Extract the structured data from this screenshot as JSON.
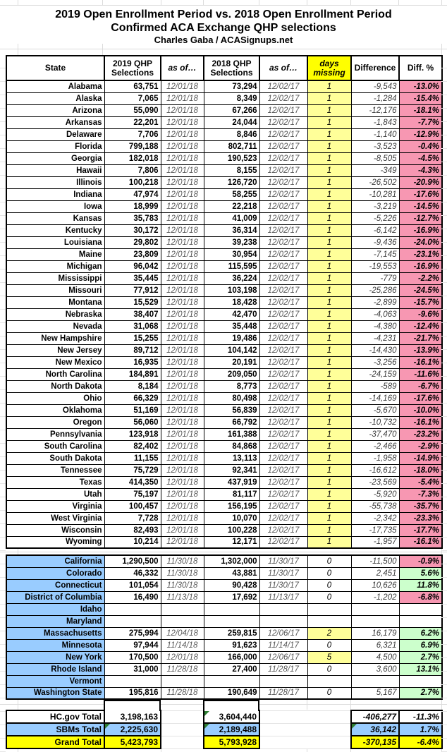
{
  "title": {
    "line1": "2019 Open Enrollment Period vs. 2018 Open Enrollment Period",
    "line2": "Confirmed ACA Exchange QHP selections",
    "line3": "Charles Gaba / ACASignups.net"
  },
  "columns": [
    {
      "label": "State",
      "class": ""
    },
    {
      "label": "2019 QHP\nSelections",
      "class": ""
    },
    {
      "label": "as of…",
      "class": "asof"
    },
    {
      "label": "2018 QHP\nSelections",
      "class": ""
    },
    {
      "label": "as of…",
      "class": "asof"
    },
    {
      "label": "days\nmissing",
      "class": "days"
    },
    {
      "label": "Difference",
      "class": ""
    },
    {
      "label": "Diff. %",
      "class": ""
    }
  ],
  "colors": {
    "header_days_yellow": "#ffff00",
    "days_cell_yellow": "#ffff99",
    "negative_pink": "#f797b2",
    "positive_green": "#ccffcc",
    "sbm_blue": "#99ccff",
    "grand_total_yellow": "#ffff00",
    "flag_green": "#2e7d32",
    "gridline_gray": "#dcdcdc"
  },
  "hcgov_rows": [
    {
      "state": "Alabama",
      "v2019": "63,751",
      "d2019": "12/01/18",
      "v2018": "73,294",
      "d2017": "12/02/17",
      "days": "1",
      "diff": "-9,543",
      "pct": "-13.0%"
    },
    {
      "state": "Alaska",
      "v2019": "7,065",
      "d2019": "12/01/18",
      "v2018": "8,349",
      "d2017": "12/02/17",
      "days": "1",
      "diff": "-1,284",
      "pct": "-15.4%"
    },
    {
      "state": "Arizona",
      "v2019": "55,090",
      "d2019": "12/01/18",
      "v2018": "67,266",
      "d2017": "12/02/17",
      "days": "1",
      "diff": "-12,176",
      "pct": "-18.1%"
    },
    {
      "state": "Arkansas",
      "v2019": "22,201",
      "d2019": "12/01/18",
      "v2018": "24,044",
      "d2017": "12/02/17",
      "days": "1",
      "diff": "-1,843",
      "pct": "-7.7%"
    },
    {
      "state": "Delaware",
      "v2019": "7,706",
      "d2019": "12/01/18",
      "v2018": "8,846",
      "d2017": "12/02/17",
      "days": "1",
      "diff": "-1,140",
      "pct": "-12.9%"
    },
    {
      "state": "Florida",
      "v2019": "799,188",
      "d2019": "12/01/18",
      "v2018": "802,711",
      "d2017": "12/02/17",
      "days": "1",
      "diff": "-3,523",
      "pct": "-0.4%"
    },
    {
      "state": "Georgia",
      "v2019": "182,018",
      "d2019": "12/01/18",
      "v2018": "190,523",
      "d2017": "12/02/17",
      "days": "1",
      "diff": "-8,505",
      "pct": "-4.5%"
    },
    {
      "state": "Hawaii",
      "v2019": "7,806",
      "d2019": "12/01/18",
      "v2018": "8,155",
      "d2017": "12/02/17",
      "days": "1",
      "diff": "-349",
      "pct": "-4.3%"
    },
    {
      "state": "Illinois",
      "v2019": "100,218",
      "d2019": "12/01/18",
      "v2018": "126,720",
      "d2017": "12/02/17",
      "days": "1",
      "diff": "-26,502",
      "pct": "-20.9%"
    },
    {
      "state": "Indiana",
      "v2019": "47,974",
      "d2019": "12/01/18",
      "v2018": "58,255",
      "d2017": "12/02/17",
      "days": "1",
      "diff": "-10,281",
      "pct": "-17.6%"
    },
    {
      "state": "Iowa",
      "v2019": "18,999",
      "d2019": "12/01/18",
      "v2018": "22,218",
      "d2017": "12/02/17",
      "days": "1",
      "diff": "-3,219",
      "pct": "-14.5%"
    },
    {
      "state": "Kansas",
      "v2019": "35,783",
      "d2019": "12/01/18",
      "v2018": "41,009",
      "d2017": "12/02/17",
      "days": "1",
      "diff": "-5,226",
      "pct": "-12.7%"
    },
    {
      "state": "Kentucky",
      "v2019": "30,172",
      "d2019": "12/01/18",
      "v2018": "36,314",
      "d2017": "12/02/17",
      "days": "1",
      "diff": "-6,142",
      "pct": "-16.9%"
    },
    {
      "state": "Louisiana",
      "v2019": "29,802",
      "d2019": "12/01/18",
      "v2018": "39,238",
      "d2017": "12/02/17",
      "days": "1",
      "diff": "-9,436",
      "pct": "-24.0%"
    },
    {
      "state": "Maine",
      "v2019": "23,809",
      "d2019": "12/01/18",
      "v2018": "30,954",
      "d2017": "12/02/17",
      "days": "1",
      "diff": "-7,145",
      "pct": "-23.1%"
    },
    {
      "state": "Michigan",
      "v2019": "96,042",
      "d2019": "12/01/18",
      "v2018": "115,595",
      "d2017": "12/02/17",
      "days": "1",
      "diff": "-19,553",
      "pct": "-16.9%"
    },
    {
      "state": "Mississippi",
      "v2019": "35,445",
      "d2019": "12/01/18",
      "v2018": "36,224",
      "d2017": "12/02/17",
      "days": "1",
      "diff": "-779",
      "pct": "-2.2%"
    },
    {
      "state": "Missouri",
      "v2019": "77,912",
      "d2019": "12/01/18",
      "v2018": "103,198",
      "d2017": "12/02/17",
      "days": "1",
      "diff": "-25,286",
      "pct": "-24.5%"
    },
    {
      "state": "Montana",
      "v2019": "15,529",
      "d2019": "12/01/18",
      "v2018": "18,428",
      "d2017": "12/02/17",
      "days": "1",
      "diff": "-2,899",
      "pct": "-15.7%"
    },
    {
      "state": "Nebraska",
      "v2019": "38,407",
      "d2019": "12/01/18",
      "v2018": "42,470",
      "d2017": "12/02/17",
      "days": "1",
      "diff": "-4,063",
      "pct": "-9.6%"
    },
    {
      "state": "Nevada",
      "v2019": "31,068",
      "d2019": "12/01/18",
      "v2018": "35,448",
      "d2017": "12/02/17",
      "days": "1",
      "diff": "-4,380",
      "pct": "-12.4%"
    },
    {
      "state": "New Hampshire",
      "v2019": "15,255",
      "d2019": "12/01/18",
      "v2018": "19,486",
      "d2017": "12/02/17",
      "days": "1",
      "diff": "-4,231",
      "pct": "-21.7%"
    },
    {
      "state": "New Jersey",
      "v2019": "89,712",
      "d2019": "12/01/18",
      "v2018": "104,142",
      "d2017": "12/02/17",
      "days": "1",
      "diff": "-14,430",
      "pct": "-13.9%"
    },
    {
      "state": "New Mexico",
      "v2019": "16,935",
      "d2019": "12/01/18",
      "v2018": "20,191",
      "d2017": "12/02/17",
      "days": "1",
      "diff": "-3,256",
      "pct": "-16.1%"
    },
    {
      "state": "North Carolina",
      "v2019": "184,891",
      "d2019": "12/01/18",
      "v2018": "209,050",
      "d2017": "12/02/17",
      "days": "1",
      "diff": "-24,159",
      "pct": "-11.6%"
    },
    {
      "state": "North Dakota",
      "v2019": "8,184",
      "d2019": "12/01/18",
      "v2018": "8,773",
      "d2017": "12/02/17",
      "days": "1",
      "diff": "-589",
      "pct": "-6.7%"
    },
    {
      "state": "Ohio",
      "v2019": "66,329",
      "d2019": "12/01/18",
      "v2018": "80,498",
      "d2017": "12/02/17",
      "days": "1",
      "diff": "-14,169",
      "pct": "-17.6%"
    },
    {
      "state": "Oklahoma",
      "v2019": "51,169",
      "d2019": "12/01/18",
      "v2018": "56,839",
      "d2017": "12/02/17",
      "days": "1",
      "diff": "-5,670",
      "pct": "-10.0%"
    },
    {
      "state": "Oregon",
      "v2019": "56,060",
      "d2019": "12/01/18",
      "v2018": "66,792",
      "d2017": "12/02/17",
      "days": "1",
      "diff": "-10,732",
      "pct": "-16.1%"
    },
    {
      "state": "Pennsylvania",
      "v2019": "123,918",
      "d2019": "12/01/18",
      "v2018": "161,388",
      "d2017": "12/02/17",
      "days": "1",
      "diff": "-37,470",
      "pct": "-23.2%"
    },
    {
      "state": "South Carolina",
      "v2019": "82,402",
      "d2019": "12/01/18",
      "v2018": "84,868",
      "d2017": "12/02/17",
      "days": "1",
      "diff": "-2,466",
      "pct": "-2.9%"
    },
    {
      "state": "South Dakota",
      "v2019": "11,155",
      "d2019": "12/01/18",
      "v2018": "13,113",
      "d2017": "12/02/17",
      "days": "1",
      "diff": "-1,958",
      "pct": "-14.9%"
    },
    {
      "state": "Tennessee",
      "v2019": "75,729",
      "d2019": "12/01/18",
      "v2018": "92,341",
      "d2017": "12/02/17",
      "days": "1",
      "diff": "-16,612",
      "pct": "-18.0%"
    },
    {
      "state": "Texas",
      "v2019": "414,350",
      "d2019": "12/01/18",
      "v2018": "437,919",
      "d2017": "12/02/17",
      "days": "1",
      "diff": "-23,569",
      "pct": "-5.4%"
    },
    {
      "state": "Utah",
      "v2019": "75,197",
      "d2019": "12/01/18",
      "v2018": "81,117",
      "d2017": "12/02/17",
      "days": "1",
      "diff": "-5,920",
      "pct": "-7.3%"
    },
    {
      "state": "Virginia",
      "v2019": "100,457",
      "d2019": "12/01/18",
      "v2018": "156,195",
      "d2017": "12/02/17",
      "days": "1",
      "diff": "-55,738",
      "pct": "-35.7%"
    },
    {
      "state": "West Virginia",
      "v2019": "7,728",
      "d2019": "12/01/18",
      "v2018": "10,070",
      "d2017": "12/02/17",
      "days": "1",
      "diff": "-2,342",
      "pct": "-23.3%"
    },
    {
      "state": "Wisconsin",
      "v2019": "82,493",
      "d2019": "12/01/18",
      "v2018": "100,228",
      "d2017": "12/02/17",
      "days": "1",
      "diff": "-17,735",
      "pct": "-17.7%"
    },
    {
      "state": "Wyoming",
      "v2019": "10,214",
      "d2019": "12/01/18",
      "v2018": "12,171",
      "d2017": "12/02/17",
      "days": "1",
      "diff": "-1,957",
      "pct": "-16.1%"
    }
  ],
  "sbm_rows": [
    {
      "state": "California",
      "v2019": "1,290,500",
      "d2019": "11/30/18",
      "v2018": "1,302,000",
      "d2017": "11/30/17",
      "days": "0",
      "diff": "-11,500",
      "pct": "-0.9%"
    },
    {
      "state": "Colorado",
      "v2019": "46,332",
      "d2019": "11/30/18",
      "v2018": "43,881",
      "d2017": "11/30/17",
      "days": "0",
      "diff": "2,451",
      "pct": "5.6%"
    },
    {
      "state": "Connecticut",
      "v2019": "101,054",
      "d2019": "11/30/18",
      "v2018": "90,428",
      "d2017": "11/30/17",
      "days": "0",
      "diff": "10,626",
      "pct": "11.8%"
    },
    {
      "state": "District of Columbia",
      "v2019": "16,490",
      "d2019": "11/13/18",
      "v2018": "17,692",
      "d2017": "11/13/17",
      "days": "0",
      "diff": "-1,202",
      "pct": "-6.8%"
    },
    {
      "state": "Idaho",
      "v2019": "",
      "d2019": "",
      "v2018": "",
      "d2017": "",
      "days": "",
      "diff": "",
      "pct": ""
    },
    {
      "state": "Maryland",
      "v2019": "",
      "d2019": "",
      "v2018": "",
      "d2017": "",
      "days": "",
      "diff": "",
      "pct": ""
    },
    {
      "state": "Massachusetts",
      "v2019": "275,994",
      "d2019": "12/04/18",
      "v2018": "259,815",
      "d2017": "12/06/17",
      "days": "2",
      "diff": "16,179",
      "pct": "6.2%"
    },
    {
      "state": "Minnesota",
      "v2019": "97,944",
      "d2019": "11/14/18",
      "v2018": "91,623",
      "d2017": "11/14/17",
      "days": "0",
      "diff": "6,321",
      "pct": "6.9%"
    },
    {
      "state": "New York",
      "v2019": "170,500",
      "d2019": "12/01/18",
      "v2018": "166,000",
      "d2017": "12/06/17",
      "days": "5",
      "diff": "4,500",
      "pct": "2.7%"
    },
    {
      "state": "Rhode Island",
      "v2019": "31,000",
      "d2019": "11/28/18",
      "v2018": "27,400",
      "d2017": "11/28/17",
      "days": "0",
      "diff": "3,600",
      "pct": "13.1%"
    },
    {
      "state": "Vermont",
      "v2019": "",
      "d2019": "",
      "v2018": "",
      "d2017": "",
      "days": "",
      "diff": "",
      "pct": ""
    },
    {
      "state": "Washington State",
      "v2019": "195,816",
      "d2019": "11/28/18",
      "v2018": "190,649",
      "d2017": "11/28/17",
      "days": "0",
      "diff": "5,167",
      "pct": "2.7%"
    }
  ],
  "totals": [
    {
      "label": "HC.gov Total",
      "v2019": "3,198,163",
      "v2018": "3,604,440",
      "diff": "-406,277",
      "pct": "-11.3%",
      "bg": "white",
      "flags": [
        "v2018"
      ]
    },
    {
      "label": "SBMs Total",
      "v2019": "2,225,630",
      "v2018": "2,189,488",
      "diff": "36,142",
      "pct": "1.7%",
      "bg": "blue",
      "flags": [
        "v2019",
        "v2018",
        "diff"
      ]
    },
    {
      "label": "Grand Total",
      "v2019": "5,423,793",
      "v2018": "5,793,928",
      "diff": "-370,135",
      "pct": "-6.4%",
      "bg": "yellow",
      "flags": []
    }
  ]
}
